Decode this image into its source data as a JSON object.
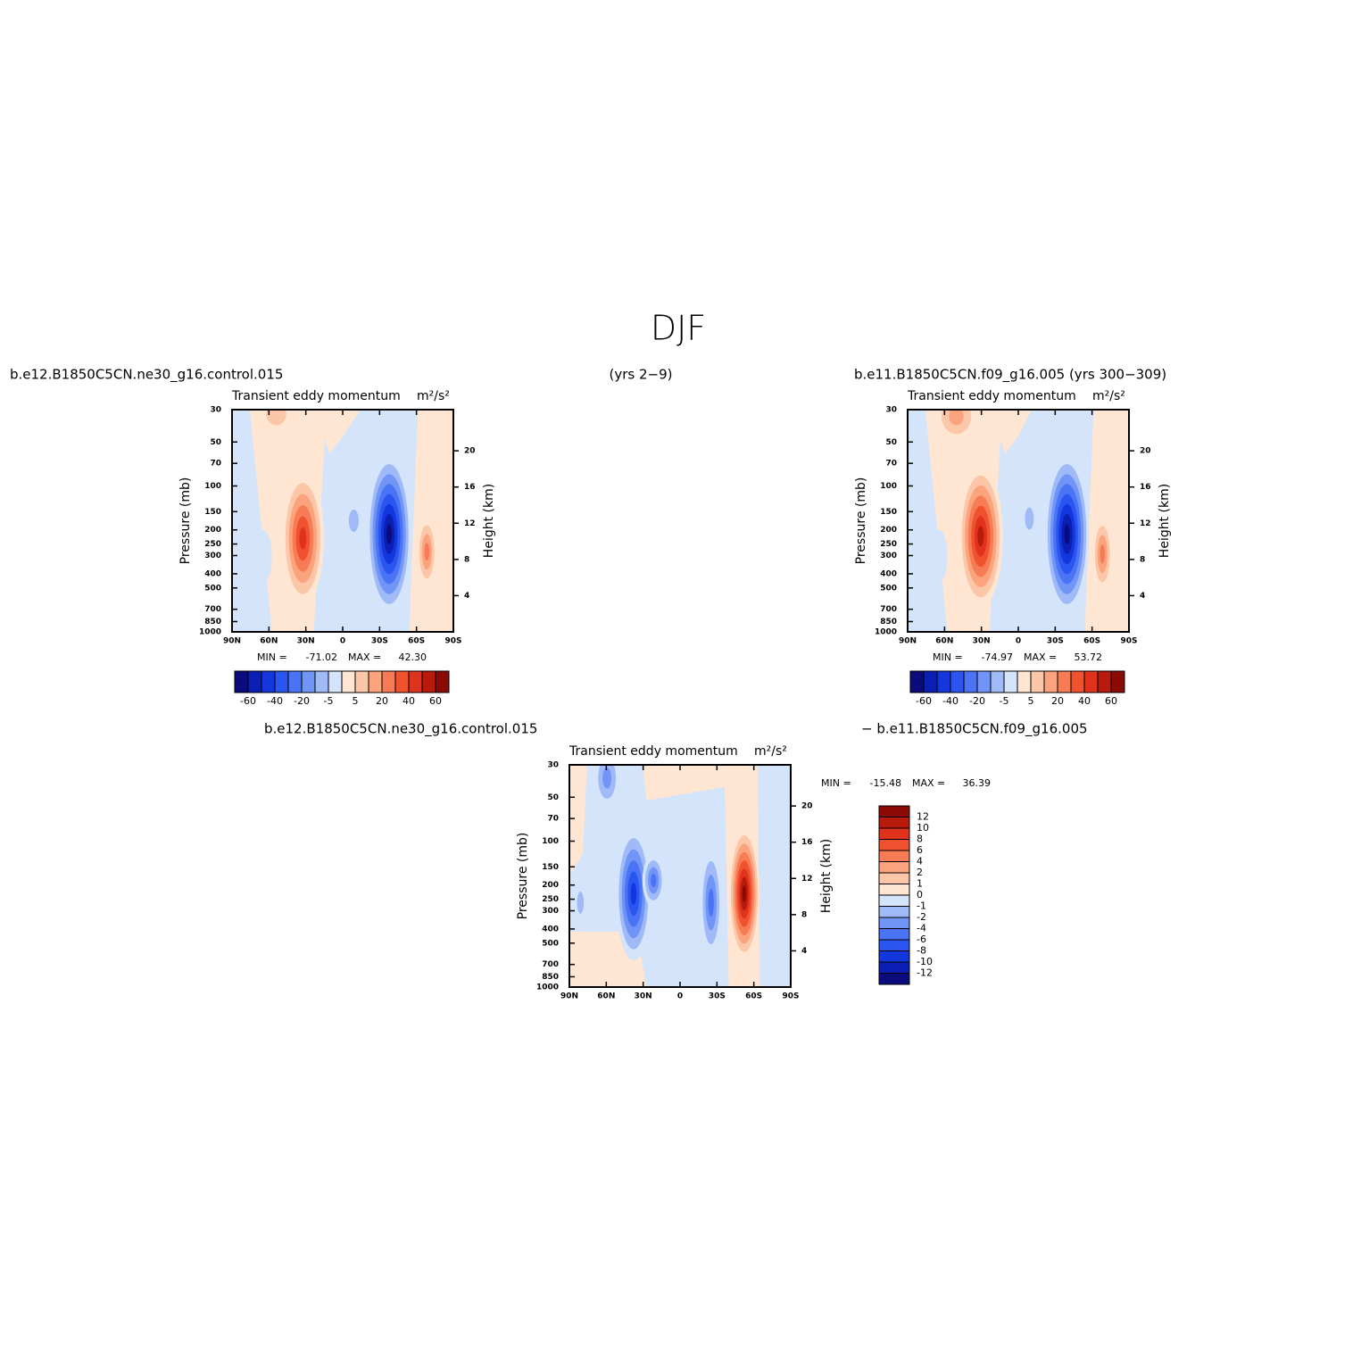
{
  "title": "DJF",
  "subtitle": "(yrs 2−9)",
  "chart_data": [
    {
      "type": "contour",
      "case_label": "b.e12.B1850C5CN.ne30_g16.control.015",
      "title": "Transient eddy momentum",
      "units": "m²/s²",
      "ylabel": "Pressure (mb)",
      "y2label": "Height (km)",
      "ylog": true,
      "xlim": [
        90,
        -90
      ],
      "xticks": [
        {
          "value": 90,
          "label": "90N"
        },
        {
          "value": 60,
          "label": "60N"
        },
        {
          "value": 30,
          "label": "30N"
        },
        0,
        {
          "value": -30,
          "label": "30S"
        },
        {
          "value": -60,
          "label": "60S"
        },
        {
          "value": -90,
          "label": "90S"
        }
      ],
      "ylim": [
        1000,
        30
      ],
      "yticks": [
        30,
        50,
        70,
        100,
        150,
        200,
        250,
        300,
        400,
        500,
        700,
        850,
        1000
      ],
      "y2ticks": [
        4,
        8,
        12,
        16,
        20
      ],
      "min_label": "MIN =",
      "min": -71.02,
      "max_label": "MAX =",
      "max": {
        "value": 42.3,
        "label": "42.30"
      },
      "colorbar": {
        "orientation": "horizontal",
        "colors": [
          "#0a0c7d",
          "#0b1fb5",
          "#1237dc",
          "#2b55f0",
          "#4a73f5",
          "#7095f7",
          "#a0baf8",
          "#d3e4fb",
          "#fee6d2",
          "#fcc6a8",
          "#fba37c",
          "#f77b55",
          "#f0522f",
          "#e0321c",
          "#b81a0c",
          "#8c0a06"
        ],
        "levels": [
          -60,
          -40,
          -20,
          -5,
          5,
          20,
          40,
          60
        ]
      }
    },
    {
      "type": "contour",
      "case_label": "b.e11.B1850C5CN.f09_g16.005 (yrs 300−309)",
      "title": "Transient eddy momentum",
      "units": "m²/s²",
      "ylabel": "Pressure (mb)",
      "y2label": "Height (km)",
      "ylog": true,
      "xlim": [
        90,
        -90
      ],
      "xticks": [
        {
          "value": 90,
          "label": "90N"
        },
        {
          "value": 60,
          "label": "60N"
        },
        {
          "value": 30,
          "label": "30N"
        },
        0,
        {
          "value": -30,
          "label": "30S"
        },
        {
          "value": -60,
          "label": "60S"
        },
        {
          "value": -90,
          "label": "90S"
        }
      ],
      "ylim": [
        1000,
        30
      ],
      "yticks": [
        30,
        50,
        70,
        100,
        150,
        200,
        250,
        300,
        400,
        500,
        700,
        850,
        1000
      ],
      "y2ticks": [
        4,
        8,
        12,
        16,
        20
      ],
      "min_label": "MIN =",
      "min": -74.97,
      "max_label": "MAX =",
      "max": 53.72,
      "colorbar": {
        "orientation": "horizontal",
        "colors": [
          "#0a0c7d",
          "#0b1fb5",
          "#1237dc",
          "#2b55f0",
          "#4a73f5",
          "#7095f7",
          "#a0baf8",
          "#d3e4fb",
          "#fee6d2",
          "#fcc6a8",
          "#fba37c",
          "#f77b55",
          "#f0522f",
          "#e0321c",
          "#b81a0c",
          "#8c0a06"
        ],
        "levels": [
          -60,
          -40,
          -20,
          -5,
          5,
          20,
          40,
          60
        ]
      }
    },
    {
      "type": "contour",
      "case_label": "b.e12.B1850C5CN.ne30_g16.control.015",
      "case_label_2": "− b.e11.B1850C5CN.f09_g16.005",
      "title": "Transient eddy momentum",
      "units": "m²/s²",
      "ylabel": "Pressure (mb)",
      "y2label": "Height (km)",
      "ylog": true,
      "xlim": [
        90,
        -90
      ],
      "xticks": [
        {
          "value": 90,
          "label": "90N"
        },
        {
          "value": 60,
          "label": "60N"
        },
        {
          "value": 30,
          "label": "30N"
        },
        0,
        {
          "value": -30,
          "label": "30S"
        },
        {
          "value": -60,
          "label": "60S"
        },
        {
          "value": -90,
          "label": "90S"
        }
      ],
      "ylim": [
        1000,
        30
      ],
      "yticks": [
        30,
        50,
        70,
        100,
        150,
        200,
        250,
        300,
        400,
        500,
        700,
        850,
        1000
      ],
      "y2ticks": [
        4,
        8,
        12,
        16,
        20
      ],
      "min_label": "MIN =",
      "min": -15.48,
      "max_label": "MAX =",
      "max": 36.39,
      "colorbar": {
        "orientation": "vertical",
        "colors": [
          "#0a0c7d",
          "#0b1fb5",
          "#1237dc",
          "#2b55f0",
          "#4a73f5",
          "#7095f7",
          "#a0baf8",
          "#d3e4fb",
          "#fee6d2",
          "#fcc6a8",
          "#fba37c",
          "#f77b55",
          "#f0522f",
          "#e0321c",
          "#b81a0c",
          "#8c0a06"
        ],
        "levels": [
          12,
          10,
          8,
          6,
          4,
          2,
          1,
          0,
          -1,
          -2,
          -4,
          -6,
          -8,
          -10,
          -12
        ]
      }
    }
  ]
}
